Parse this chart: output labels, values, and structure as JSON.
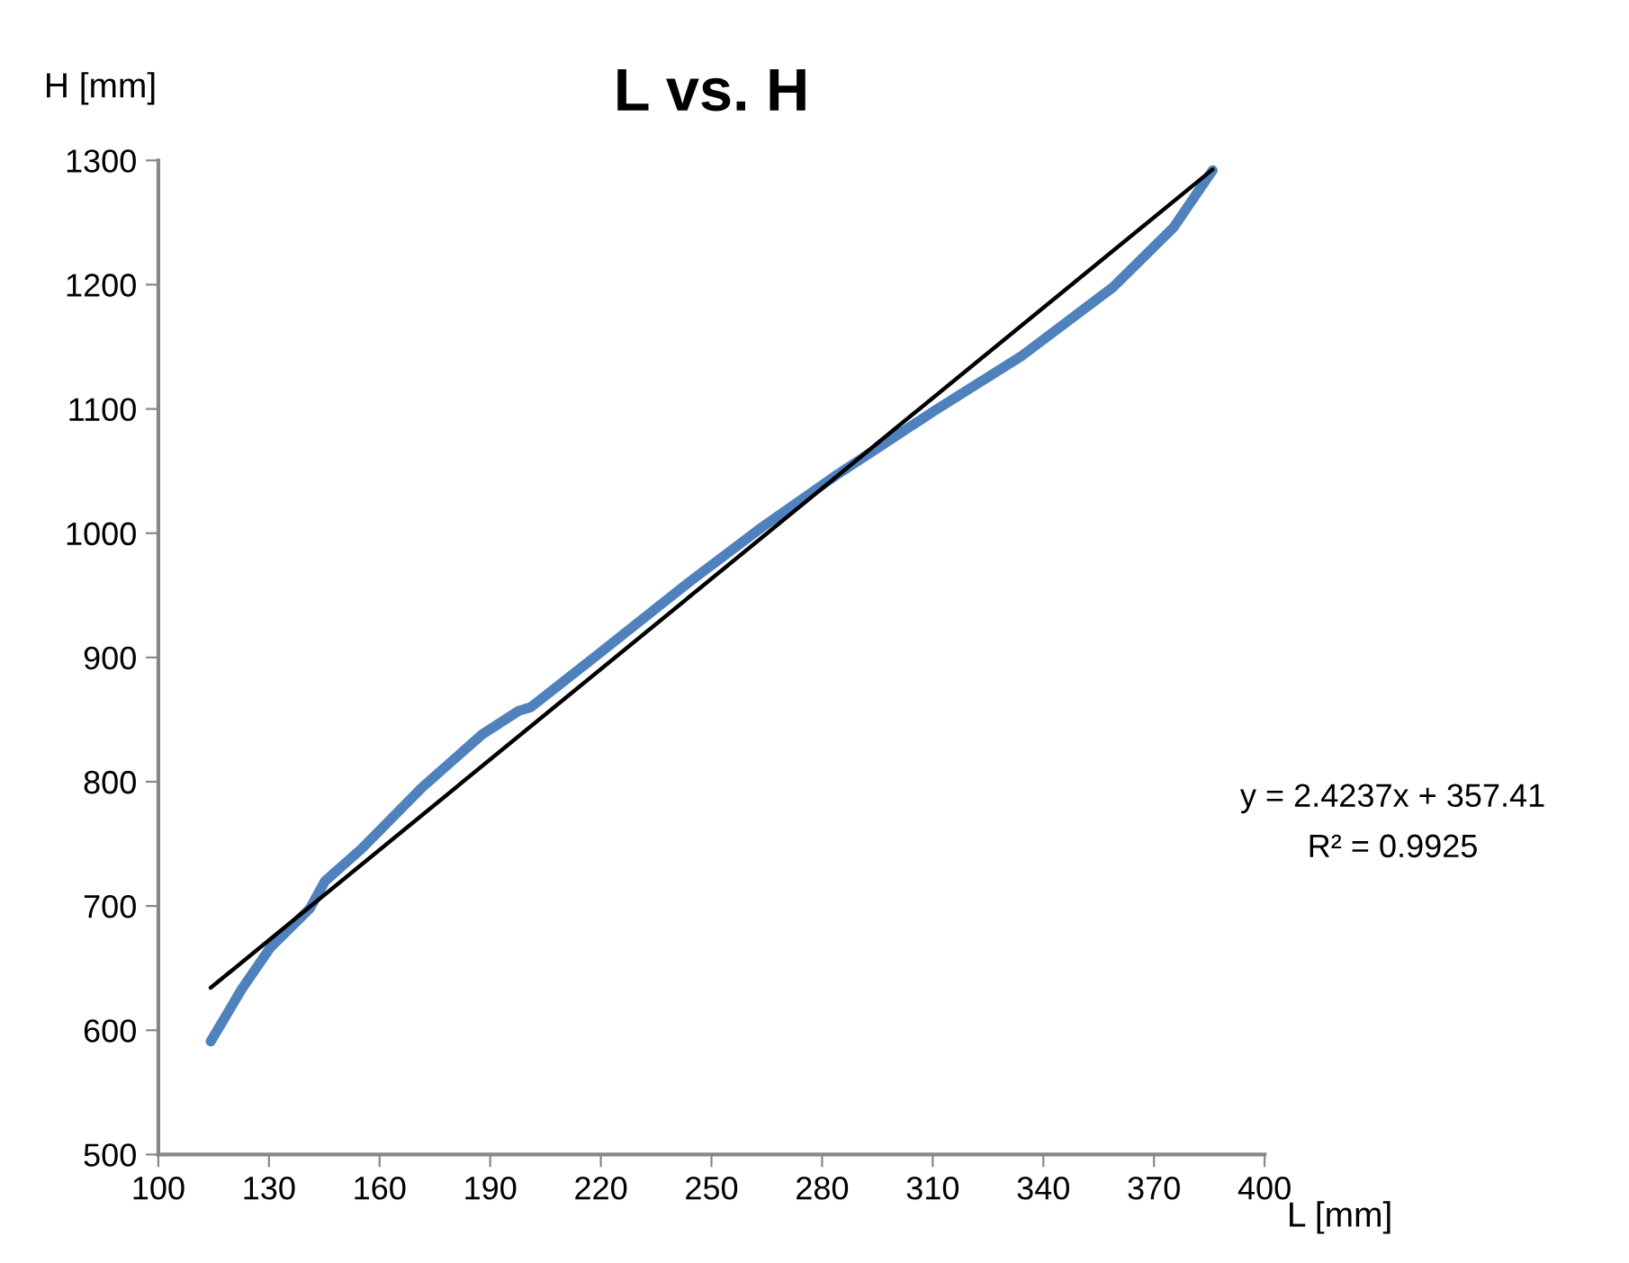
{
  "chart_data": {
    "type": "line",
    "title": "L vs. H",
    "xlabel": "L [mm]",
    "ylabel": "H [mm]",
    "xlim": [
      100,
      400
    ],
    "xticks": [
      100,
      130,
      160,
      190,
      220,
      250,
      280,
      310,
      340,
      370,
      400
    ],
    "ylim": [
      500,
      1300
    ],
    "yticks": [
      500,
      600,
      700,
      800,
      900,
      1000,
      1100,
      1200,
      1300
    ],
    "grid": false,
    "legend": false,
    "marker": "none",
    "line_style": "solid",
    "series": [
      {
        "color": "#4f81bd",
        "x": [
          114.2,
          122.6,
          130.5,
          141.1,
          145.2,
          155.1,
          171.4,
          187.8,
          197.7,
          201,
          219.5,
          244.1,
          263.8,
          283.5,
          309.7,
          334.3,
          358.9,
          375.3,
          385.9
        ],
        "values": [
          591,
          633,
          667,
          698,
          720,
          746,
          795,
          838,
          857,
          860,
          903,
          961,
          1005,
          1046,
          1097,
          1143,
          1198,
          1246,
          1292
        ]
      },
      {
        "type": "line",
        "color": "#000000",
        "x": [
          114.2,
          385.9
        ],
        "values": [
          634.2,
          1292.7
        ]
      }
    ],
    "annotations": [
      "y = 2.4237x + 357.41",
      "R² = 0.9925"
    ]
  }
}
